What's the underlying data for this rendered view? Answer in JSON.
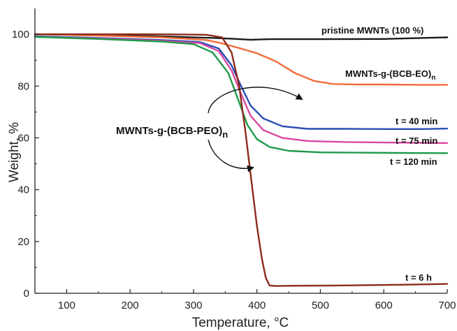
{
  "chart_data": {
    "type": "line",
    "title": "",
    "xlabel": "Temperature, °C",
    "ylabel": "Weight, %",
    "xlim": [
      50,
      700
    ],
    "ylim": [
      0,
      110
    ],
    "xticks": [
      100,
      200,
      300,
      400,
      500,
      600,
      700
    ],
    "yticks": [
      0,
      20,
      40,
      60,
      80,
      100
    ],
    "grid": false,
    "legend": "none",
    "series": [
      {
        "name": "pristine MWNTs (100 %)",
        "color": "#1a1a1a",
        "x": [
          50,
          150,
          250,
          330,
          360,
          390,
          420,
          500,
          600,
          700
        ],
        "y": [
          100,
          99.7,
          99.2,
          98.6,
          98.3,
          97.9,
          98.1,
          98.1,
          98.2,
          98.8
        ]
      },
      {
        "name": "MWNTs-g-(BCB-EO)n",
        "color": "#f26b3a",
        "x": [
          50,
          150,
          250,
          320,
          345,
          370,
          400,
          430,
          460,
          490,
          520,
          560,
          600,
          650,
          700
        ],
        "y": [
          100,
          99.5,
          98.8,
          97.8,
          96.5,
          94.8,
          92.7,
          89.5,
          85,
          82,
          80.8,
          80.6,
          80.6,
          80.5,
          80.5
        ]
      },
      {
        "name": "t = 40 min",
        "color": "#2a4db5",
        "x": [
          50,
          150,
          250,
          310,
          340,
          360,
          375,
          390,
          410,
          440,
          480,
          540,
          600,
          660,
          700
        ],
        "y": [
          99.2,
          98.6,
          97.8,
          97,
          94.5,
          88,
          80,
          72.5,
          67.5,
          64.5,
          63.5,
          63.5,
          63.4,
          63.4,
          63.6
        ]
      },
      {
        "name": "t = 75 min",
        "color": "#d84aa0",
        "x": [
          50,
          150,
          250,
          310,
          340,
          360,
          375,
          390,
          410,
          440,
          480,
          540,
          600,
          660,
          700
        ],
        "y": [
          99,
          98.4,
          97.5,
          96.6,
          93.5,
          86,
          77,
          68.5,
          63,
          60,
          58.8,
          58.4,
          58.2,
          58.1,
          58
        ]
      },
      {
        "name": "t = 120 min",
        "color": "#1f9a4a",
        "x": [
          50,
          150,
          250,
          300,
          330,
          355,
          370,
          385,
          400,
          420,
          450,
          500,
          560,
          620,
          700
        ],
        "y": [
          99,
          98.2,
          97.2,
          96.2,
          93,
          85,
          75,
          65,
          59.5,
          56.5,
          55,
          54.4,
          54.3,
          54.2,
          54.1
        ]
      },
      {
        "name": "t = 6 h",
        "color": "#8b2b1a",
        "x": [
          50,
          150,
          250,
          320,
          345,
          360,
          372,
          382,
          392,
          400,
          408,
          414,
          420,
          430,
          460,
          520,
          600,
          650,
          700
        ],
        "y": [
          100,
          100,
          100,
          99.8,
          98.8,
          93,
          80,
          62,
          42,
          26,
          13,
          6,
          3,
          2.8,
          2.9,
          3,
          3.2,
          3.4,
          3.6
        ]
      }
    ],
    "annotations": [
      {
        "text": "pristine MWNTs (100 %)",
        "series": 0
      },
      {
        "text": "MWNTs-g-(BCB-EO)",
        "subscript": "n",
        "series": 1
      },
      {
        "text": "t = 40 min",
        "series": 2
      },
      {
        "text": "t = 75 min",
        "series": 3
      },
      {
        "text": "t = 120 min",
        "series": 4
      },
      {
        "text": "t = 6 h",
        "series": 5
      },
      {
        "text": "MWNTs-g-(BCB-PEO)",
        "subscript": "n",
        "series": null
      }
    ]
  }
}
